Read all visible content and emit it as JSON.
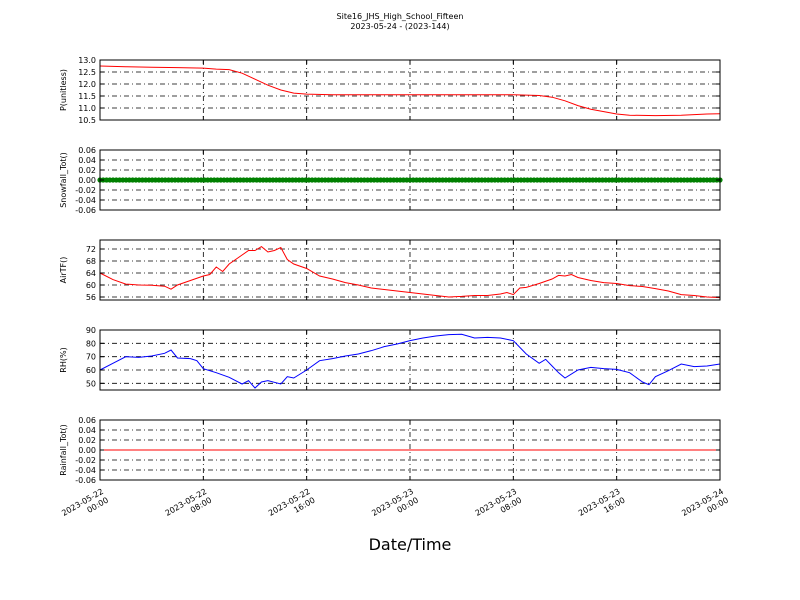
{
  "title": {
    "line1": "Site16_JHS_High_School_Fifteen",
    "line2": "2023-05-24 - (2023-144)"
  },
  "chart_data": {
    "type": "line",
    "xlabel": "Date/Time",
    "xlim": [
      "2023-05-22 00:00",
      "2023-05-24 00:00"
    ],
    "xticks": [
      {
        "value": "2023-05-22 00:00",
        "date": "2023-05-22",
        "time": "00:00"
      },
      {
        "value": "2023-05-22 08:00",
        "date": "2023-05-22",
        "time": "08:00"
      },
      {
        "value": "2023-05-22 16:00",
        "date": "2023-05-22",
        "time": "16:00"
      },
      {
        "value": "2023-05-23 00:00",
        "date": "2023-05-23",
        "time": "00:00"
      },
      {
        "value": "2023-05-23 08:00",
        "date": "2023-05-23",
        "time": "08:00"
      },
      {
        "value": "2023-05-23 16:00",
        "date": "2023-05-23",
        "time": "16:00"
      },
      {
        "value": "2023-05-24 00:00",
        "date": "2023-05-24",
        "time": "00:00"
      }
    ],
    "grid": true,
    "panels": [
      {
        "ylabel": "P(unitless)",
        "ylim": [
          10.5,
          13.0
        ],
        "yticks": [
          "13.0",
          "12.5",
          "12.0",
          "11.5",
          "11.0",
          "10.5"
        ],
        "color": "#ff0000",
        "style": "line",
        "points": [
          [
            "2023-05-22 00:00",
            12.75
          ],
          [
            "2023-05-22 02:00",
            12.72
          ],
          [
            "2023-05-22 04:00",
            12.7
          ],
          [
            "2023-05-22 06:00",
            12.68
          ],
          [
            "2023-05-22 08:00",
            12.66
          ],
          [
            "2023-05-22 09:00",
            12.62
          ],
          [
            "2023-05-22 10:00",
            12.6
          ],
          [
            "2023-05-22 11:00",
            12.45
          ],
          [
            "2023-05-22 12:00",
            12.2
          ],
          [
            "2023-05-22 13:00",
            11.95
          ],
          [
            "2023-05-22 14:00",
            11.75
          ],
          [
            "2023-05-22 15:00",
            11.62
          ],
          [
            "2023-05-22 16:00",
            11.58
          ],
          [
            "2023-05-22 18:00",
            11.55
          ],
          [
            "2023-05-22 22:00",
            11.55
          ],
          [
            "2023-05-23 02:00",
            11.55
          ],
          [
            "2023-05-23 06:00",
            11.55
          ],
          [
            "2023-05-23 08:00",
            11.55
          ],
          [
            "2023-05-23 10:00",
            11.52
          ],
          [
            "2023-05-23 11:00",
            11.45
          ],
          [
            "2023-05-23 12:00",
            11.3
          ],
          [
            "2023-05-23 13:00",
            11.1
          ],
          [
            "2023-05-23 14:00",
            10.95
          ],
          [
            "2023-05-23 15:00",
            10.85
          ],
          [
            "2023-05-23 16:00",
            10.75
          ],
          [
            "2023-05-23 17:00",
            10.7
          ],
          [
            "2023-05-23 19:00",
            10.68
          ],
          [
            "2023-05-23 21:00",
            10.7
          ],
          [
            "2023-05-23 23:00",
            10.75
          ],
          [
            "2023-05-24 00:00",
            10.76
          ]
        ]
      },
      {
        "ylabel": "Snowfall_Tot()",
        "ylim": [
          -0.06,
          0.06
        ],
        "yticks": [
          "0.06",
          "0.04",
          "0.02",
          "0.00",
          "-0.02",
          "-0.04",
          "-0.06"
        ],
        "color": "#008000",
        "style": "markers",
        "constant": 0.0
      },
      {
        "ylabel": "AirTF()",
        "ylim": [
          55,
          75
        ],
        "yticks": [
          "72",
          "68",
          "64",
          "60",
          "56"
        ],
        "color": "#ff0000",
        "style": "line",
        "points": [
          [
            "2023-05-22 00:00",
            64.0
          ],
          [
            "2023-05-22 01:00",
            61.8
          ],
          [
            "2023-05-22 02:00",
            60.3
          ],
          [
            "2023-05-22 03:00",
            60.0
          ],
          [
            "2023-05-22 04:00",
            59.9
          ],
          [
            "2023-05-22 05:00",
            59.6
          ],
          [
            "2023-05-22 05:30",
            58.6
          ],
          [
            "2023-05-22 06:00",
            60.0
          ],
          [
            "2023-05-22 07:00",
            61.5
          ],
          [
            "2023-05-22 08:00",
            63.0
          ],
          [
            "2023-05-22 08:30",
            63.5
          ],
          [
            "2023-05-22 09:00",
            66.0
          ],
          [
            "2023-05-22 09:30",
            64.5
          ],
          [
            "2023-05-22 10:00",
            67.0
          ],
          [
            "2023-05-22 10:30",
            68.5
          ],
          [
            "2023-05-22 11:00",
            70.0
          ],
          [
            "2023-05-22 11:30",
            71.5
          ],
          [
            "2023-05-22 12:00",
            71.5
          ],
          [
            "2023-05-22 12:30",
            72.8
          ],
          [
            "2023-05-22 13:00",
            71.0
          ],
          [
            "2023-05-22 13:30",
            71.5
          ],
          [
            "2023-05-22 14:00",
            72.5
          ],
          [
            "2023-05-22 14:30",
            68.5
          ],
          [
            "2023-05-22 15:00",
            67.0
          ],
          [
            "2023-05-22 16:00",
            65.5
          ],
          [
            "2023-05-22 17:00",
            63.0
          ],
          [
            "2023-05-22 18:00",
            62.0
          ],
          [
            "2023-05-22 19:00",
            60.8
          ],
          [
            "2023-05-22 20:00",
            60.0
          ],
          [
            "2023-05-22 21:00",
            59.0
          ],
          [
            "2023-05-22 22:00",
            58.5
          ],
          [
            "2023-05-22 23:00",
            58.0
          ],
          [
            "2023-05-23 00:00",
            57.5
          ],
          [
            "2023-05-23 01:00",
            57.0
          ],
          [
            "2023-05-23 02:00",
            56.5
          ],
          [
            "2023-05-23 03:00",
            56.0
          ],
          [
            "2023-05-23 04:00",
            56.2
          ],
          [
            "2023-05-23 05:00",
            56.5
          ],
          [
            "2023-05-23 06:00",
            56.5
          ],
          [
            "2023-05-23 07:00",
            57.0
          ],
          [
            "2023-05-23 07:30",
            57.5
          ],
          [
            "2023-05-23 08:00",
            56.8
          ],
          [
            "2023-05-23 08:30",
            59.0
          ],
          [
            "2023-05-23 09:00",
            59.2
          ],
          [
            "2023-05-23 10:00",
            60.5
          ],
          [
            "2023-05-23 11:00",
            62.0
          ],
          [
            "2023-05-23 11:30",
            63.2
          ],
          [
            "2023-05-23 12:00",
            63.0
          ],
          [
            "2023-05-23 12:30",
            63.5
          ],
          [
            "2023-05-23 13:00",
            62.5
          ],
          [
            "2023-05-23 14:00",
            61.5
          ],
          [
            "2023-05-23 15:00",
            60.8
          ],
          [
            "2023-05-23 16:00",
            60.5
          ],
          [
            "2023-05-23 17:00",
            59.8
          ],
          [
            "2023-05-23 18:00",
            59.5
          ],
          [
            "2023-05-23 19:00",
            58.8
          ],
          [
            "2023-05-23 20:00",
            58.0
          ],
          [
            "2023-05-23 21:00",
            56.8
          ],
          [
            "2023-05-23 22:00",
            56.5
          ],
          [
            "2023-05-23 23:00",
            56.0
          ],
          [
            "2023-05-24 00:00",
            55.8
          ]
        ]
      },
      {
        "ylabel": "RH(%)",
        "ylim": [
          45,
          90
        ],
        "yticks": [
          "90",
          "80",
          "70",
          "60",
          "50"
        ],
        "color": "#0000ff",
        "style": "line",
        "points": [
          [
            "2023-05-22 00:00",
            60.0
          ],
          [
            "2023-05-22 01:00",
            65.0
          ],
          [
            "2023-05-22 02:00",
            70.0
          ],
          [
            "2023-05-22 03:00",
            69.5
          ],
          [
            "2023-05-22 04:00",
            70.5
          ],
          [
            "2023-05-22 05:00",
            72.5
          ],
          [
            "2023-05-22 05:30",
            75.0
          ],
          [
            "2023-05-22 06:00",
            69.0
          ],
          [
            "2023-05-22 07:00",
            68.5
          ],
          [
            "2023-05-22 07:30",
            67.0
          ],
          [
            "2023-05-22 08:00",
            61.0
          ],
          [
            "2023-05-22 09:00",
            58.0
          ],
          [
            "2023-05-22 10:00",
            54.5
          ],
          [
            "2023-05-22 11:00",
            49.5
          ],
          [
            "2023-05-22 11:30",
            52.0
          ],
          [
            "2023-05-22 12:00",
            46.5
          ],
          [
            "2023-05-22 12:30",
            51.0
          ],
          [
            "2023-05-22 13:00",
            52.0
          ],
          [
            "2023-05-22 14:00",
            49.5
          ],
          [
            "2023-05-22 14:30",
            55.0
          ],
          [
            "2023-05-22 15:00",
            54.0
          ],
          [
            "2023-05-22 16:00",
            60.0
          ],
          [
            "2023-05-22 17:00",
            67.0
          ],
          [
            "2023-05-22 18:00",
            68.5
          ],
          [
            "2023-05-22 19:00",
            70.5
          ],
          [
            "2023-05-22 20:00",
            72.0
          ],
          [
            "2023-05-22 21:00",
            74.5
          ],
          [
            "2023-05-22 22:00",
            77.5
          ],
          [
            "2023-05-22 23:00",
            79.5
          ],
          [
            "2023-05-23 00:00",
            82.0
          ],
          [
            "2023-05-23 01:00",
            84.0
          ],
          [
            "2023-05-23 02:00",
            85.5
          ],
          [
            "2023-05-23 03:00",
            86.5
          ],
          [
            "2023-05-23 04:00",
            86.8
          ],
          [
            "2023-05-23 05:00",
            84.0
          ],
          [
            "2023-05-23 06:00",
            84.5
          ],
          [
            "2023-05-23 07:00",
            84.0
          ],
          [
            "2023-05-23 08:00",
            82.0
          ],
          [
            "2023-05-23 09:00",
            72.0
          ],
          [
            "2023-05-23 10:00",
            65.0
          ],
          [
            "2023-05-23 10:30",
            68.0
          ],
          [
            "2023-05-23 11:00",
            63.0
          ],
          [
            "2023-05-23 11:30",
            58.0
          ],
          [
            "2023-05-23 12:00",
            54.0
          ],
          [
            "2023-05-23 13:00",
            60.0
          ],
          [
            "2023-05-23 14:00",
            62.0
          ],
          [
            "2023-05-23 15:00",
            61.0
          ],
          [
            "2023-05-23 16:00",
            60.5
          ],
          [
            "2023-05-23 17:00",
            58.0
          ],
          [
            "2023-05-23 18:00",
            51.0
          ],
          [
            "2023-05-23 18:30",
            49.0
          ],
          [
            "2023-05-23 19:00",
            55.0
          ],
          [
            "2023-05-23 20:00",
            59.5
          ],
          [
            "2023-05-23 21:00",
            64.5
          ],
          [
            "2023-05-23 22:00",
            62.5
          ],
          [
            "2023-05-23 23:00",
            63.0
          ],
          [
            "2023-05-24 00:00",
            64.5
          ]
        ]
      },
      {
        "ylabel": "Rainfall_Tot()",
        "ylim": [
          -0.06,
          0.06
        ],
        "yticks": [
          "0.06",
          "0.04",
          "0.02",
          "0.00",
          "-0.02",
          "-0.04",
          "-0.06"
        ],
        "color": "#ff0000",
        "style": "line",
        "constant": 0.0
      }
    ]
  }
}
